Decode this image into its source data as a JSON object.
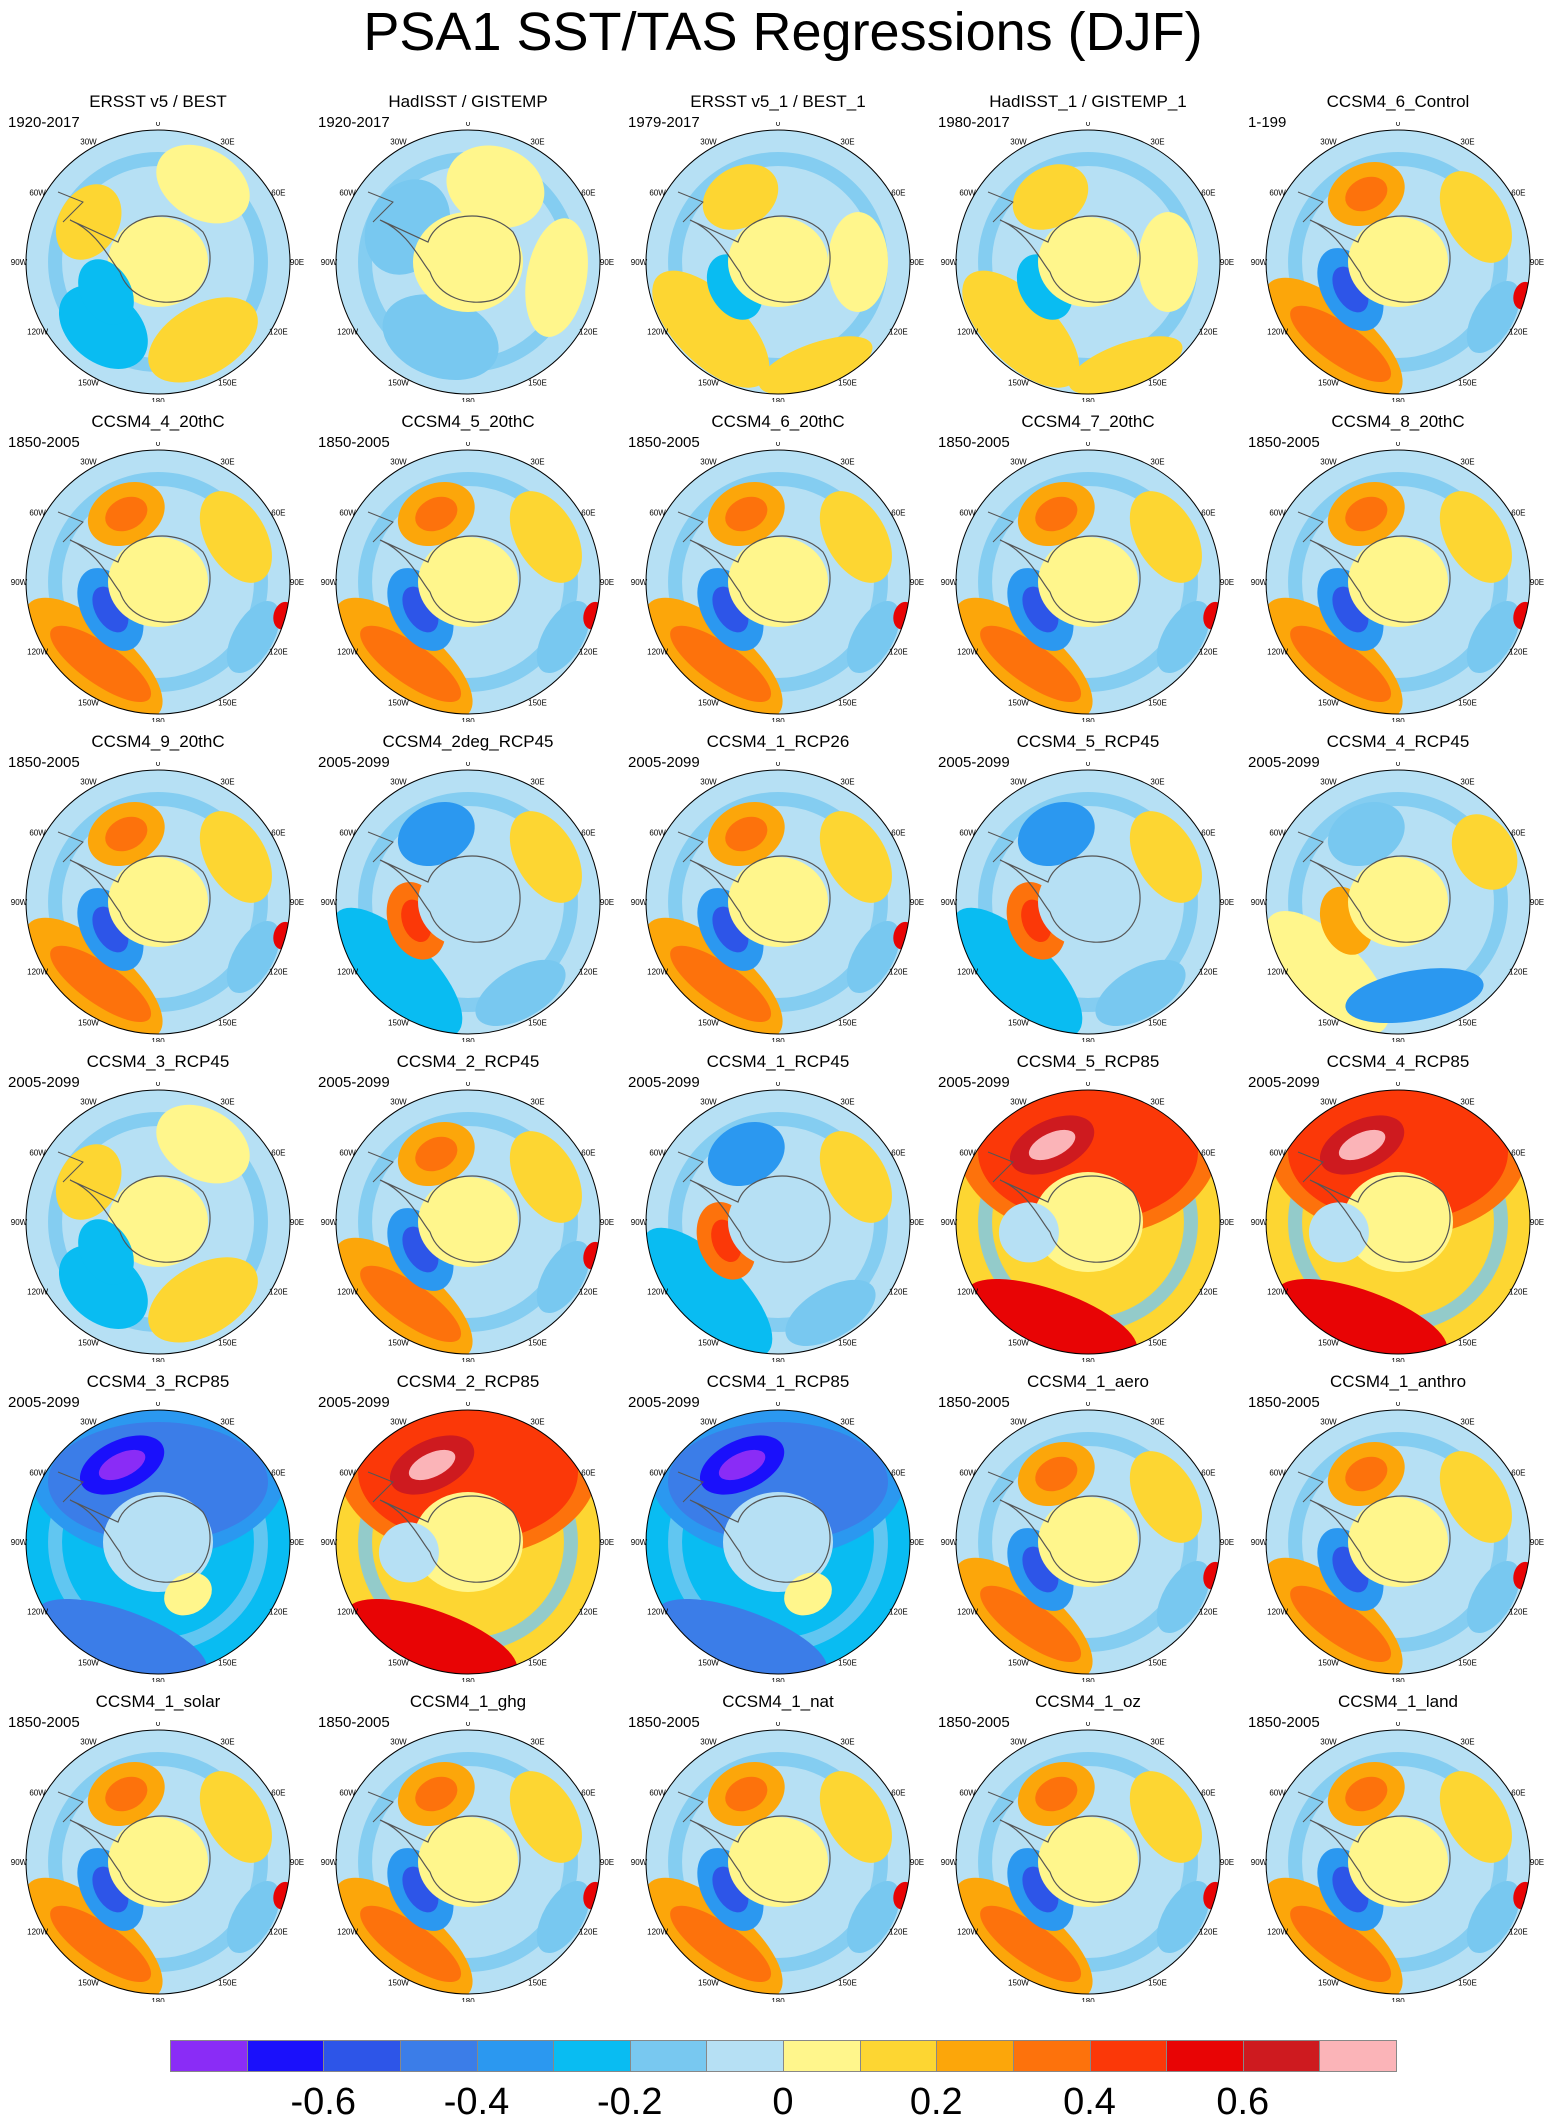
{
  "title": "PSA1 SST/TAS Regressions (DJF)",
  "longitude_labels": [
    "0",
    "30E",
    "60E",
    "90E",
    "120E",
    "150E",
    "180",
    "150W",
    "120W",
    "90W",
    "60W",
    "30W"
  ],
  "panels": [
    {
      "title": "ERSST v5 / BEST",
      "period": "1920-2017",
      "pattern": "weak"
    },
    {
      "title": "HadISST / GISTEMP",
      "period": "1920-2017",
      "pattern": "veryweak"
    },
    {
      "title": "ERSST v5_1 / BEST_1",
      "period": "1979-2017",
      "pattern": "moderate"
    },
    {
      "title": "HadISST_1 / GISTEMP_1",
      "period": "1980-2017",
      "pattern": "moderate"
    },
    {
      "title": "CCSM4_6_Control",
      "period": "1-199",
      "pattern": "psa"
    },
    {
      "title": "CCSM4_4_20thC",
      "period": "1850-2005",
      "pattern": "psa"
    },
    {
      "title": "CCSM4_5_20thC",
      "period": "1850-2005",
      "pattern": "psa"
    },
    {
      "title": "CCSM4_6_20thC",
      "period": "1850-2005",
      "pattern": "psa"
    },
    {
      "title": "CCSM4_7_20thC",
      "period": "1850-2005",
      "pattern": "psa"
    },
    {
      "title": "CCSM4_8_20thC",
      "period": "1850-2005",
      "pattern": "psa"
    },
    {
      "title": "CCSM4_9_20thC",
      "period": "1850-2005",
      "pattern": "psa"
    },
    {
      "title": "CCSM4_2deg_RCP45",
      "period": "2005-2099",
      "pattern": "inverse"
    },
    {
      "title": "CCSM4_1_RCP26",
      "period": "2005-2099",
      "pattern": "psa"
    },
    {
      "title": "CCSM4_5_RCP45",
      "period": "2005-2099",
      "pattern": "inverse"
    },
    {
      "title": "CCSM4_4_RCP45",
      "period": "2005-2099",
      "pattern": "inverse-weak"
    },
    {
      "title": "CCSM4_3_RCP45",
      "period": "2005-2099",
      "pattern": "weak"
    },
    {
      "title": "CCSM4_2_RCP45",
      "period": "2005-2099",
      "pattern": "psa"
    },
    {
      "title": "CCSM4_1_RCP45",
      "period": "2005-2099",
      "pattern": "inverse"
    },
    {
      "title": "CCSM4_5_RCP85",
      "period": "2005-2099",
      "pattern": "warm"
    },
    {
      "title": "CCSM4_4_RCP85",
      "period": "2005-2099",
      "pattern": "warm"
    },
    {
      "title": "CCSM4_3_RCP85",
      "period": "2005-2099",
      "pattern": "cold"
    },
    {
      "title": "CCSM4_2_RCP85",
      "period": "2005-2099",
      "pattern": "warm"
    },
    {
      "title": "CCSM4_1_RCP85",
      "period": "2005-2099",
      "pattern": "cold"
    },
    {
      "title": "CCSM4_1_aero",
      "period": "1850-2005",
      "pattern": "psa"
    },
    {
      "title": "CCSM4_1_anthro",
      "period": "1850-2005",
      "pattern": "psa"
    },
    {
      "title": "CCSM4_1_solar",
      "period": "1850-2005",
      "pattern": "psa"
    },
    {
      "title": "CCSM4_1_ghg",
      "period": "1850-2005",
      "pattern": "psa"
    },
    {
      "title": "CCSM4_1_nat",
      "period": "1850-2005",
      "pattern": "psa"
    },
    {
      "title": "CCSM4_1_oz",
      "period": "1850-2005",
      "pattern": "psa"
    },
    {
      "title": "CCSM4_1_land",
      "period": "1850-2005",
      "pattern": "psa"
    }
  ],
  "colorbar": {
    "levels": [
      -0.7,
      -0.6,
      -0.5,
      -0.4,
      -0.3,
      -0.2,
      -0.1,
      0,
      0.1,
      0.2,
      0.3,
      0.4,
      0.5,
      0.6,
      0.7
    ],
    "colors": [
      "#8a2cf6",
      "#1a10fb",
      "#2d55e8",
      "#3b7de8",
      "#2b98f0",
      "#09bcf2",
      "#78c8f0",
      "#b6e0f4",
      "#fff68c",
      "#fdd632",
      "#fca60a",
      "#fd720c",
      "#fb3808",
      "#e80405",
      "#ce1a1f",
      "#fbb4b8"
    ],
    "tick_labels": [
      "-0.6",
      "-0.4",
      "-0.2",
      "0",
      "0.2",
      "0.4",
      "0.6"
    ]
  }
}
